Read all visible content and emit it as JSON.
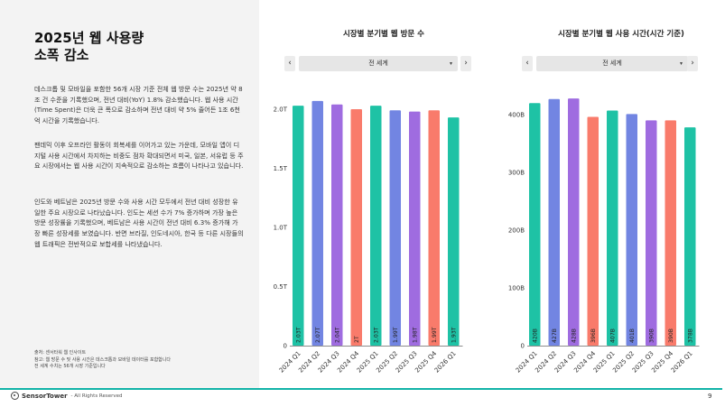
{
  "slide": {
    "title_lines": [
      "2025년 웹 사용량",
      "소폭 감소"
    ],
    "paragraphs": [
      "데스크톱 및 모바일을 포함한 56개 시장 기준 전체 웹 방문 수는 2025년 약 8조 건 수준을 기록했으며, 전년 대비(YoY) 1.8% 감소했습니다. 웹 사용 시간(Time Spent)은 더욱 큰 폭으로 감소하며 전년 대비 약 5% 줄어든 1조 6천억 시간을 기록했습니다.",
      "팬데믹 이후 오프라인 활동이 회복세를 이어가고 있는 가운데, 모바일 앱이 디지털 사용 시간에서 차지하는 비중도 점차 확대되면서 미국, 일본, 서유럽 등 주요 시장에서는 웹 사용 시간이 지속적으로 감소하는 흐름이 나타나고 있습니다.",
      "인도와 베트남은 2025년 방문 수와 사용 시간 모두에서 전년 대비 성장한 유일한 주요 시장으로 나타났습니다. 인도는 세션 수가 7% 증가하며 가장 높은 방문 성장률을 기록했으며, 베트남은 사용 시간이 전년 대비 6.3% 증가해 가장 빠른 성장세를 보였습니다. 반면 브라질, 인도네시아, 한국 등 다른 시장들의 웹 트래픽은 전반적으로 보합세를 나타냈습니다."
    ],
    "footnotes": [
      "출처: 센서타워 웹 인사이트",
      "참고: 웹 방문 수 및 사용 시간은 데스크톱과 모바일 데이터를 포함합니다",
      "전 세계 수치는 56개 시장 기준입니다"
    ],
    "footer_brand": "SensorTower",
    "footer_rights": "- All Rights Reserved",
    "page_number": "9"
  },
  "controls": {
    "prev": "‹",
    "next": "›",
    "caret": "▾",
    "region": "전 세계"
  },
  "colors": {
    "teal": "#1ec2a5",
    "blue": "#7285e2",
    "purple": "#9f6ce0",
    "coral": "#f97b6b",
    "footer_line": "#12b3a8"
  },
  "chart_data": [
    {
      "type": "bar",
      "title": "시장별 분기별 웹 방문 수",
      "categories": [
        "2024 Q1",
        "2024 Q2",
        "2024 Q3",
        "2024 Q4",
        "2025 Q1",
        "2025 Q2",
        "2025 Q3",
        "2025 Q4",
        "2026 Q1"
      ],
      "values": [
        2.03,
        2.07,
        2.04,
        2.0,
        2.03,
        1.99,
        1.98,
        1.99,
        1.93
      ],
      "data_labels": [
        "2.03T",
        "2.07T",
        "2.04T",
        "2T",
        "2.03T",
        "1.99T",
        "1.98T",
        "1.99T",
        "1.93T"
      ],
      "bar_colors": [
        "#1ec2a5",
        "#7285e2",
        "#9f6ce0",
        "#f97b6b",
        "#1ec2a5",
        "#7285e2",
        "#9f6ce0",
        "#f97b6b",
        "#1ec2a5"
      ],
      "y_ticks": [
        0,
        0.5,
        1.0,
        1.5,
        2.0
      ],
      "y_tick_labels": [
        "0",
        "0.5T",
        "1.0T",
        "1.5T",
        "2.0T"
      ],
      "ylim": [
        0,
        2.0
      ],
      "grid": false
    },
    {
      "type": "bar",
      "title": "시장별 분기별 웹 사용 시간(시간 기준)",
      "categories": [
        "2024 Q1",
        "2024 Q2",
        "2024 Q3",
        "2024 Q4",
        "2025 Q1",
        "2025 Q2",
        "2025 Q3",
        "2025 Q4",
        "2026 Q1"
      ],
      "values": [
        420,
        427,
        428,
        396,
        407,
        401,
        390,
        390,
        378
      ],
      "data_labels": [
        "420B",
        "427B",
        "428B",
        "396B",
        "407B",
        "401B",
        "390B",
        "390B",
        "378B"
      ],
      "bar_colors": [
        "#1ec2a5",
        "#7285e2",
        "#9f6ce0",
        "#f97b6b",
        "#1ec2a5",
        "#7285e2",
        "#9f6ce0",
        "#f97b6b",
        "#1ec2a5"
      ],
      "y_ticks": [
        0,
        100,
        200,
        300,
        400
      ],
      "y_tick_labels": [
        "0",
        "100B",
        "200B",
        "300B",
        "400B"
      ],
      "ylim": [
        0,
        400
      ],
      "grid": false
    }
  ]
}
